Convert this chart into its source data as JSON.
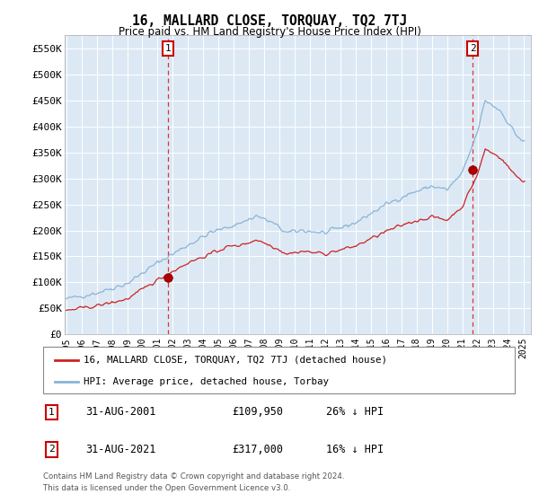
{
  "title": "16, MALLARD CLOSE, TORQUAY, TQ2 7TJ",
  "subtitle": "Price paid vs. HM Land Registry's House Price Index (HPI)",
  "ylabel_ticks": [
    "£0",
    "£50K",
    "£100K",
    "£150K",
    "£200K",
    "£250K",
    "£300K",
    "£350K",
    "£400K",
    "£450K",
    "£500K",
    "£550K"
  ],
  "ytick_values": [
    0,
    50000,
    100000,
    150000,
    200000,
    250000,
    300000,
    350000,
    400000,
    450000,
    500000,
    550000
  ],
  "ylim": [
    0,
    575000
  ],
  "xlim_start": 1994.9,
  "xlim_end": 2025.5,
  "xtick_years": [
    1995,
    1996,
    1997,
    1998,
    1999,
    2000,
    2001,
    2002,
    2003,
    2004,
    2005,
    2006,
    2007,
    2008,
    2009,
    2010,
    2011,
    2012,
    2013,
    2014,
    2015,
    2016,
    2017,
    2018,
    2019,
    2020,
    2021,
    2022,
    2023,
    2024,
    2025
  ],
  "hpi_color": "#8ab4d4",
  "price_color": "#cc2222",
  "marker_color": "#aa0000",
  "bg_color": "#dce9f5",
  "annotation_box_color": "#cc0000",
  "legend_label_price": "16, MALLARD CLOSE, TORQUAY, TQ2 7TJ (detached house)",
  "legend_label_hpi": "HPI: Average price, detached house, Torbay",
  "point1_label": "1",
  "point1_date": "31-AUG-2001",
  "point1_price": "£109,950",
  "point1_hpi": "26% ↓ HPI",
  "point1_year": 2001.67,
  "point1_value": 109950,
  "point2_label": "2",
  "point2_date": "31-AUG-2021",
  "point2_price": "£317,000",
  "point2_hpi": "16% ↓ HPI",
  "point2_year": 2021.67,
  "point2_value": 317000,
  "footer_line1": "Contains HM Land Registry data © Crown copyright and database right 2024.",
  "footer_line2": "This data is licensed under the Open Government Licence v3.0."
}
